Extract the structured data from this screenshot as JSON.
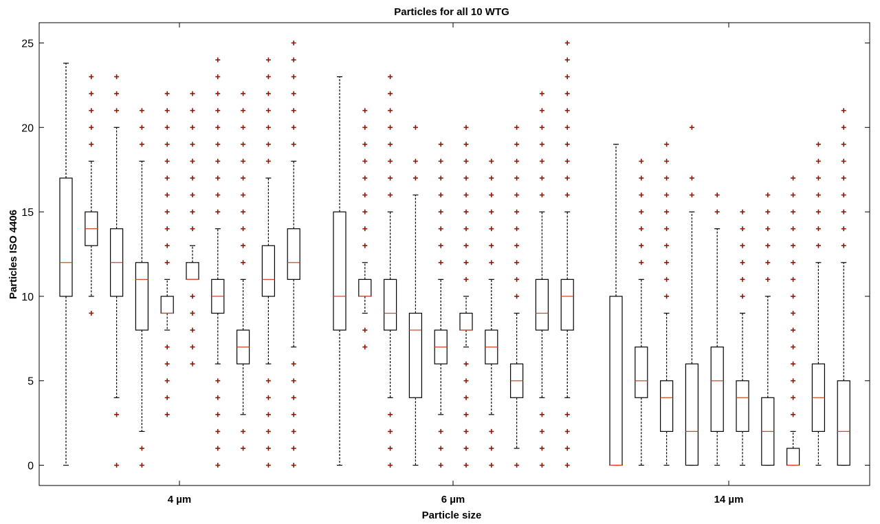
{
  "chart_data": {
    "type": "boxplot",
    "title": "Particles for all 10 WTG",
    "xlabel": "Particle size",
    "ylabel": "Particles ISO 4406",
    "ylim": [
      -1.2,
      26.2
    ],
    "yticks": [
      0,
      5,
      10,
      15,
      20,
      25
    ],
    "grid": false,
    "categories": [
      "4 µm",
      "6 µm",
      "14 µm"
    ],
    "colors": {
      "box": "#000000",
      "median": "#d04a2a",
      "outlier": "#8b1a0a",
      "axis": "#000000"
    },
    "groups": [
      {
        "category": "4 µm",
        "boxes": [
          {
            "wl": 0,
            "q1": 10,
            "med": 12,
            "q3": 17,
            "wh": 23.8,
            "out": []
          },
          {
            "wl": 10,
            "q1": 13,
            "med": 14,
            "q3": 15,
            "wh": 18,
            "out": [
              9,
              19,
              20,
              21,
              22,
              23
            ]
          },
          {
            "wl": 4,
            "q1": 10,
            "med": 12,
            "q3": 14,
            "wh": 20,
            "out": [
              0,
              3,
              21,
              22,
              23
            ]
          },
          {
            "wl": 2,
            "q1": 8,
            "med": 11,
            "q3": 12,
            "wh": 18,
            "out": [
              0,
              1,
              19,
              20,
              21
            ]
          },
          {
            "wl": 8,
            "q1": 9,
            "med": 9,
            "q3": 10,
            "wh": 11,
            "out": [
              3,
              4,
              5,
              6,
              7,
              12,
              13,
              14,
              15,
              16,
              17,
              18,
              19,
              20,
              21,
              22
            ]
          },
          {
            "wl": 11,
            "q1": 11,
            "med": 11,
            "q3": 12,
            "wh": 13,
            "out": [
              6,
              7,
              8,
              9,
              10,
              14,
              15,
              16,
              17,
              18,
              19,
              20,
              21,
              22
            ]
          },
          {
            "wl": 6,
            "q1": 9,
            "med": 10,
            "q3": 11,
            "wh": 14,
            "out": [
              0,
              1,
              2,
              3,
              4,
              5,
              15,
              16,
              17,
              18,
              19,
              20,
              21,
              22,
              23,
              24
            ]
          },
          {
            "wl": 3,
            "q1": 6,
            "med": 7,
            "q3": 8,
            "wh": 11,
            "out": [
              1,
              2,
              12,
              13,
              14,
              15,
              16,
              17,
              18,
              19,
              20,
              21,
              22
            ]
          },
          {
            "wl": 6,
            "q1": 10,
            "med": 11,
            "q3": 13,
            "wh": 17,
            "out": [
              0,
              1,
              2,
              3,
              4,
              5,
              18,
              19,
              20,
              21,
              22,
              23,
              24
            ]
          },
          {
            "wl": 7,
            "q1": 11,
            "med": 12,
            "q3": 14,
            "wh": 18,
            "out": [
              0,
              1,
              2,
              3,
              4,
              5,
              6,
              19,
              20,
              21,
              22,
              23,
              24,
              25
            ]
          }
        ]
      },
      {
        "category": "6 µm",
        "boxes": [
          {
            "wl": 0,
            "q1": 8,
            "med": 10,
            "q3": 15,
            "wh": 23,
            "out": []
          },
          {
            "wl": 9,
            "q1": 10,
            "med": 10,
            "q3": 11,
            "wh": 12,
            "out": [
              7,
              8,
              13,
              14,
              15,
              16,
              17,
              18,
              19,
              20,
              21
            ]
          },
          {
            "wl": 4,
            "q1": 8,
            "med": 9,
            "q3": 11,
            "wh": 15,
            "out": [
              0,
              1,
              2,
              3,
              16,
              17,
              18,
              19,
              20,
              21,
              22,
              23
            ]
          },
          {
            "wl": 0,
            "q1": 4,
            "med": 8,
            "q3": 9,
            "wh": 16,
            "out": [
              17,
              18,
              20
            ]
          },
          {
            "wl": 3,
            "q1": 6,
            "med": 7,
            "q3": 8,
            "wh": 11,
            "out": [
              0,
              1,
              2,
              12,
              13,
              14,
              15,
              16,
              17,
              18,
              19
            ]
          },
          {
            "wl": 7,
            "q1": 8,
            "med": 8,
            "q3": 9,
            "wh": 10,
            "out": [
              0,
              1,
              2,
              3,
              4,
              5,
              6,
              11,
              12,
              13,
              14,
              15,
              16,
              17,
              18,
              19,
              20
            ]
          },
          {
            "wl": 3,
            "q1": 6,
            "med": 7,
            "q3": 8,
            "wh": 11,
            "out": [
              0,
              1,
              2,
              12,
              13,
              14,
              15,
              16,
              17,
              18
            ]
          },
          {
            "wl": 1,
            "q1": 4,
            "med": 5,
            "q3": 6,
            "wh": 9,
            "out": [
              0,
              10,
              11,
              12,
              13,
              14,
              15,
              16,
              17,
              18,
              19,
              20
            ]
          },
          {
            "wl": 4,
            "q1": 8,
            "med": 9,
            "q3": 11,
            "wh": 15,
            "out": [
              0,
              1,
              2,
              3,
              16,
              17,
              18,
              19,
              20,
              21,
              22
            ]
          },
          {
            "wl": 4,
            "q1": 8,
            "med": 10,
            "q3": 11,
            "wh": 15,
            "out": [
              0,
              1,
              2,
              3,
              16,
              17,
              18,
              19,
              20,
              21,
              22,
              23,
              24,
              25
            ]
          }
        ]
      },
      {
        "category": "14 µm",
        "boxes": [
          {
            "wl": 0,
            "q1": 0,
            "med": 0,
            "q3": 10,
            "wh": 19,
            "out": []
          },
          {
            "wl": 0,
            "q1": 4,
            "med": 5,
            "q3": 7,
            "wh": 11,
            "out": [
              12,
              13,
              14,
              15,
              16,
              17,
              18
            ]
          },
          {
            "wl": 0,
            "q1": 2,
            "med": 4,
            "q3": 5,
            "wh": 9,
            "out": [
              10,
              11,
              12,
              13,
              14,
              15,
              16,
              17,
              18,
              19
            ]
          },
          {
            "wl": 0,
            "q1": 0,
            "med": 2,
            "q3": 6,
            "wh": 15,
            "out": [
              16,
              17,
              20
            ]
          },
          {
            "wl": 0,
            "q1": 2,
            "med": 5,
            "q3": 7,
            "wh": 14,
            "out": [
              15,
              16
            ]
          },
          {
            "wl": 0,
            "q1": 2,
            "med": 4,
            "q3": 5,
            "wh": 9,
            "out": [
              10,
              11,
              12,
              13,
              14,
              15
            ]
          },
          {
            "wl": 0,
            "q1": 0,
            "med": 2,
            "q3": 4,
            "wh": 10,
            "out": [
              11,
              12,
              13,
              14,
              15,
              16
            ]
          },
          {
            "wl": 0,
            "q1": 0,
            "med": 0,
            "q3": 1,
            "wh": 2,
            "out": [
              3,
              4,
              5,
              6,
              7,
              8,
              9,
              10,
              11,
              12,
              13,
              14,
              15,
              16,
              17
            ]
          },
          {
            "wl": 0,
            "q1": 2,
            "med": 4,
            "q3": 6,
            "wh": 12,
            "out": [
              13,
              14,
              15,
              16,
              17,
              18,
              19
            ]
          },
          {
            "wl": 0,
            "q1": 0,
            "med": 2,
            "q3": 5,
            "wh": 12,
            "out": [
              13,
              14,
              15,
              16,
              17,
              18,
              19,
              20,
              21
            ]
          }
        ]
      }
    ]
  }
}
